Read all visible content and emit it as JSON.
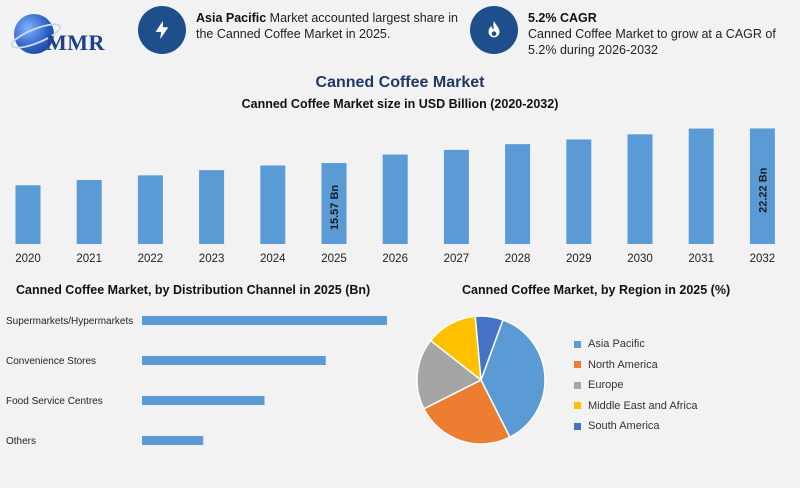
{
  "logo": {
    "text": "MMR"
  },
  "info_cards": [
    {
      "icon": "lightning-icon",
      "bold": "Asia Pacific",
      "line1": " Market accounted largest share in",
      "line2": "the Canned Coffee Market in 2025."
    },
    {
      "icon": "flame-icon",
      "bold": "5.2% CAGR",
      "line1": "Canned Coffee Market to grow at a CAGR of",
      "line2": "5.2% during 2026-2032"
    }
  ],
  "colors": {
    "bar": "#5b9bd5",
    "title": "#1f3864",
    "icon_bg": "#1f4e8c"
  },
  "chart_data": [
    {
      "type": "bar",
      "title": "Canned Coffee Market",
      "subtitle": "Canned Coffee Market size in USD Billion (2020-2032)",
      "categories": [
        "2020",
        "2021",
        "2022",
        "2023",
        "2024",
        "2025",
        "2026",
        "2027",
        "2028",
        "2029",
        "2030",
        "2031",
        "2032"
      ],
      "values": [
        11.3,
        12.3,
        13.2,
        14.2,
        15.1,
        15.57,
        17.2,
        18.1,
        19.2,
        20.1,
        21.1,
        22.2,
        22.22
      ],
      "data_labels": {
        "2025": "15.57 Bn",
        "2032": "22.22 Bn"
      },
      "xlabel": "",
      "ylabel": "",
      "grid": false
    },
    {
      "type": "bar",
      "orientation": "horizontal",
      "title": "Canned Coffee Market, by Distribution Channel in 2025 (Bn)",
      "categories": [
        "Supermarkets/Hypermarkets",
        "Convenience Stores",
        "Food Service Centres",
        "Others"
      ],
      "values": [
        100,
        75,
        50,
        25
      ]
    },
    {
      "type": "pie",
      "title": "Canned Coffee Market, by Region in 2025 (%)",
      "categories": [
        "Asia Pacific",
        "North America",
        "Europe",
        "Middle East and Africa",
        "South America"
      ],
      "values": [
        37,
        25,
        18,
        13,
        7
      ],
      "colors": [
        "#5b9bd5",
        "#ed7d31",
        "#a5a5a5",
        "#ffc000",
        "#4472c4"
      ],
      "legend": "right"
    }
  ]
}
